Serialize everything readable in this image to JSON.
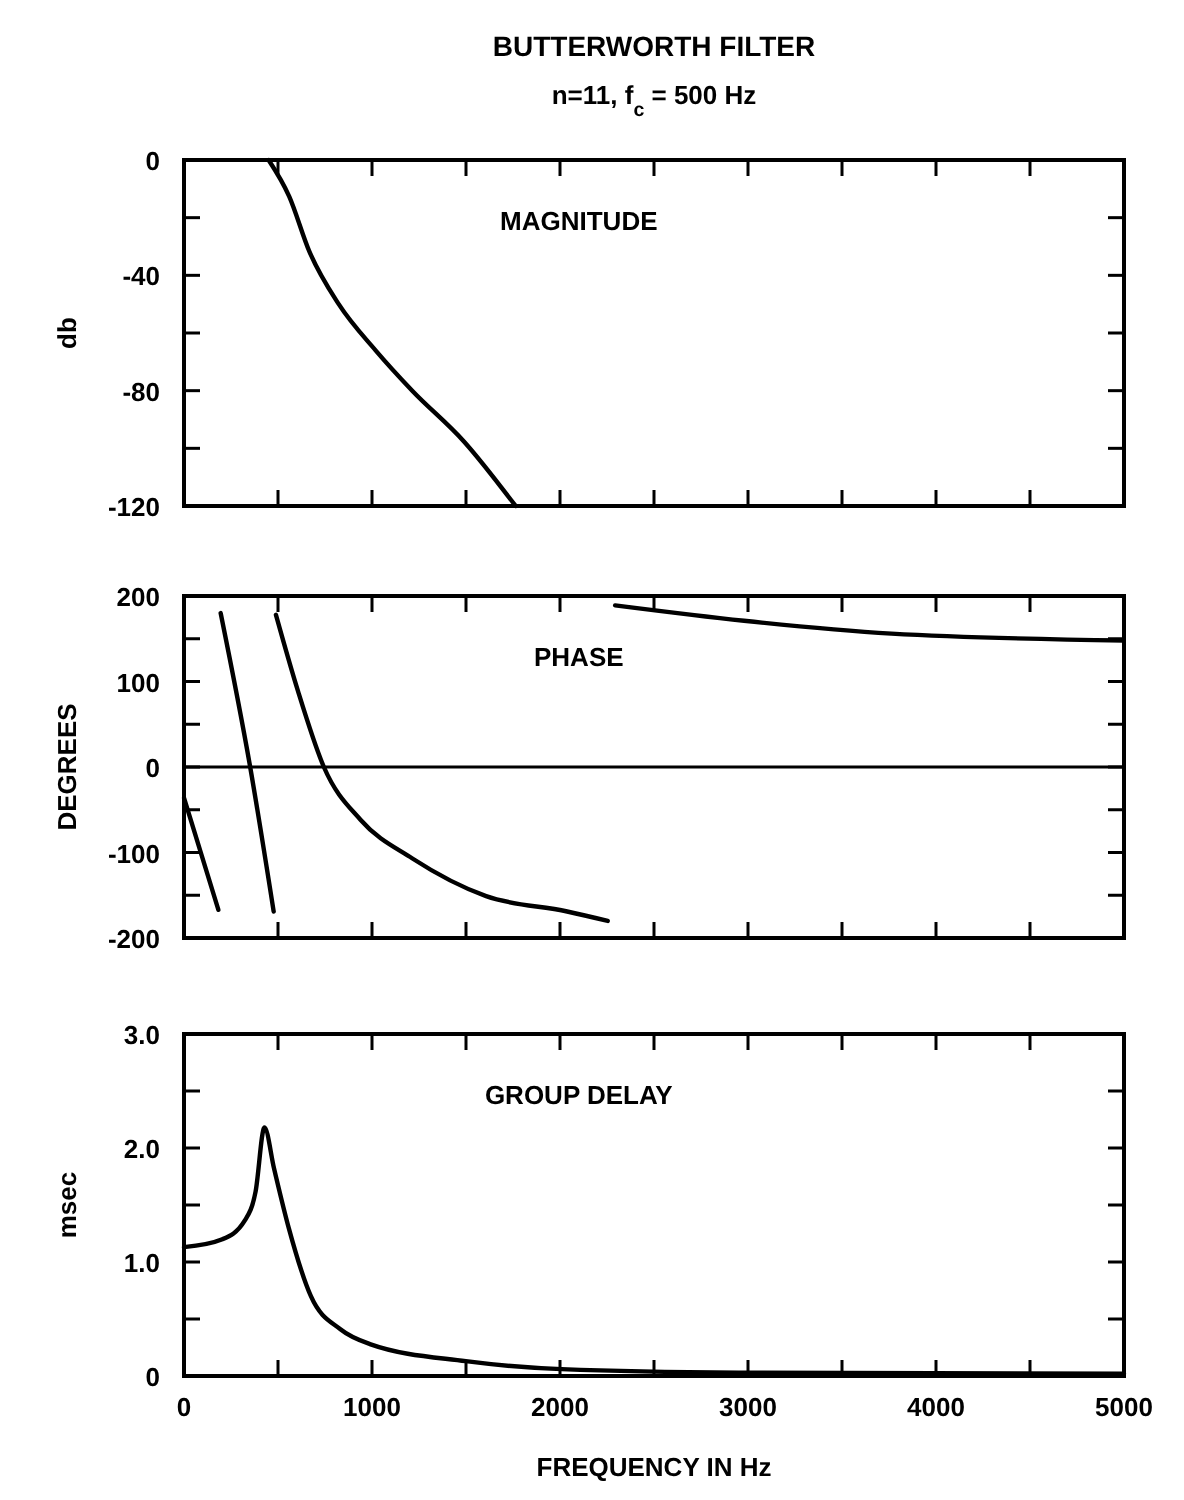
{
  "chart_data": [
    {
      "type": "line",
      "title": "BUTTERWORTH FILTER",
      "subtitle": "n=11,  f$_{c}$ = 500 Hz",
      "ylabel": "db",
      "annotations": [
        "MAGNITUDE"
      ],
      "tick_labels": "y",
      "xlim": [
        0,
        5000
      ],
      "xticks": [
        {
          "value": 0,
          "label": null
        },
        {
          "value": 500,
          "label": null
        },
        {
          "value": 1000,
          "label": null
        },
        {
          "value": 1500,
          "label": null
        },
        {
          "value": 2000,
          "label": null
        },
        {
          "value": 2500,
          "label": null
        },
        {
          "value": 3000,
          "label": null
        },
        {
          "value": 3500,
          "label": null
        },
        {
          "value": 4000,
          "label": null
        },
        {
          "value": 4500,
          "label": null
        },
        {
          "value": 5000,
          "label": null
        }
      ],
      "ylim": [
        -120,
        0
      ],
      "yticks": [
        0,
        {
          "value": -20,
          "label": null
        },
        -40,
        {
          "value": -60,
          "label": null
        },
        -80,
        {
          "value": -100,
          "label": null
        },
        -120
      ],
      "series": [
        {
          "color": "#000000",
          "x": [
            450,
            560,
            666,
            823,
            1019,
            1214,
            1489,
            1764
          ],
          "values": [
            0,
            -12.7,
            -31.6,
            -50,
            -66,
            -80,
            -97.6,
            -120
          ]
        }
      ]
    },
    {
      "type": "line",
      "ylabel": "DEGREES",
      "annotations": [
        "PHASE"
      ],
      "tick_labels": "y",
      "xlim": [
        0,
        5000
      ],
      "xticks": [
        {
          "value": 0,
          "label": null
        },
        {
          "value": 500,
          "label": null
        },
        {
          "value": 1000,
          "label": null
        },
        {
          "value": 1500,
          "label": null
        },
        {
          "value": 2000,
          "label": null
        },
        {
          "value": 2500,
          "label": null
        },
        {
          "value": 3000,
          "label": null
        },
        {
          "value": 3500,
          "label": null
        },
        {
          "value": 4000,
          "label": null
        },
        {
          "value": 4500,
          "label": null
        },
        {
          "value": 5000,
          "label": null
        }
      ],
      "ylim": [
        -200,
        200
      ],
      "yticks": [
        200,
        {
          "value": 150,
          "label": null
        },
        100,
        {
          "value": 50,
          "label": null
        },
        0,
        {
          "value": -50,
          "label": null
        },
        -100,
        {
          "value": -150,
          "label": null
        },
        -200
      ],
      "ref_lines": [
        {
          "axis": "y",
          "value": 0,
          "color": "#000000"
        }
      ],
      "series": [
        {
          "color": "#000000",
          "x": [
            0,
            183
          ],
          "values": [
            -36,
            -167
          ]
        },
        {
          "color": "#000000",
          "x": [
            195,
            352,
            477
          ],
          "values": [
            180,
            0,
            -169
          ]
        },
        {
          "color": "#000000",
          "x": [
            489,
            606,
            744,
            940,
            1215,
            1607,
            2038,
            2254
          ],
          "values": [
            178,
            89,
            0,
            -62,
            -107,
            -151,
            -169,
            -180
          ]
        },
        {
          "color": "#000000",
          "x": [
            2293,
            2979,
            3763,
            4999
          ],
          "values": [
            189,
            171,
            156,
            148
          ]
        }
      ]
    },
    {
      "type": "line",
      "ylabel": "msec",
      "xlabel": "FREQUENCY IN Hz",
      "annotations": [
        "GROUP DELAY"
      ],
      "xlim": [
        0,
        5000
      ],
      "xticks": [
        0,
        {
          "value": 500,
          "label": null
        },
        1000,
        {
          "value": 1500,
          "label": null
        },
        2000,
        {
          "value": 2500,
          "label": null
        },
        3000,
        {
          "value": 3500,
          "label": null
        },
        4000,
        {
          "value": 4500,
          "label": null
        },
        5000
      ],
      "ylim": [
        0,
        3
      ],
      "yticks": [
        {
          "value": 3,
          "label": "3.0"
        },
        {
          "value": 2.5,
          "label": null
        },
        {
          "value": 2,
          "label": "2.0"
        },
        {
          "value": 1.5,
          "label": null
        },
        {
          "value": 1,
          "label": "1.0"
        },
        {
          "value": 0.5,
          "label": null
        },
        0
      ],
      "series": [
        {
          "color": "#000000",
          "x": [
            0,
            204,
            322,
            381,
            428,
            479,
            557,
            675,
            832,
            989,
            1499,
            2009,
            2951,
            5000
          ],
          "values": [
            1.13,
            1.2,
            1.36,
            1.62,
            2.18,
            1.82,
            1.3,
            0.7,
            0.41,
            0.28,
            0.13,
            0.06,
            0.03,
            0.02
          ]
        }
      ]
    }
  ]
}
